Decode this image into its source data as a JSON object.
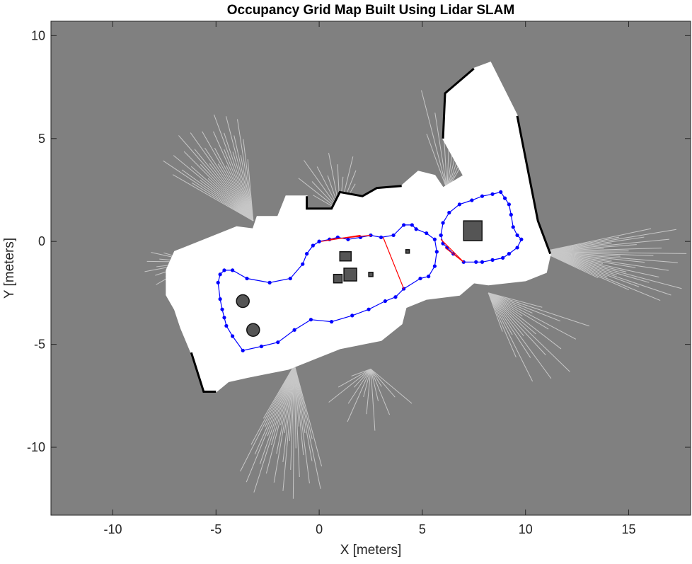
{
  "chart_data": {
    "type": "scatter",
    "title": "Occupancy Grid Map Built Using Lidar SLAM",
    "xlabel": "X [meters]",
    "ylabel": "Y [meters]",
    "xlim": [
      -13,
      18
    ],
    "ylim": [
      -13.3,
      10.7
    ],
    "xticks": [
      -10,
      -5,
      0,
      5,
      10,
      15
    ],
    "yticks": [
      10,
      5,
      0,
      -5,
      -10
    ],
    "grid": false,
    "legend": "none",
    "colors": {
      "background": "#808080",
      "free_space": "#ffffff",
      "occupied": "#000000",
      "trajectory": "#0000ff",
      "loop_closure": "#ff0000"
    },
    "trajectory": {
      "x": [
        0.0,
        0.5,
        0.9,
        1.4,
        2.0,
        2.5,
        3.0,
        3.6,
        4.1,
        4.5,
        4.7,
        5.2,
        5.6,
        5.7,
        5.6,
        5.3,
        4.9,
        4.1,
        3.7,
        3.2,
        2.4,
        1.6,
        0.6,
        -0.4,
        -1.2,
        -2.0,
        -2.8,
        -3.7,
        -4.2,
        -4.5,
        -4.6,
        -4.7,
        -4.8,
        -4.9,
        -4.8,
        -4.6,
        -4.2,
        -3.5,
        -2.4,
        -1.4,
        -0.8,
        -0.6,
        -0.3,
        0.0
      ],
      "y": [
        0.0,
        0.1,
        0.2,
        0.1,
        0.2,
        0.3,
        0.2,
        0.3,
        0.8,
        0.8,
        0.6,
        0.4,
        0.1,
        -0.5,
        -1.2,
        -1.7,
        -1.8,
        -2.3,
        -2.7,
        -2.9,
        -3.3,
        -3.6,
        -3.9,
        -3.8,
        -4.3,
        -4.9,
        -5.1,
        -5.3,
        -4.6,
        -4.1,
        -3.7,
        -3.3,
        -2.8,
        -2.0,
        -1.6,
        -1.4,
        -1.4,
        -1.8,
        -2.0,
        -1.8,
        -1.1,
        -0.6,
        -0.2,
        0.0
      ]
    },
    "trajectory_loop2": {
      "x": [
        5.9,
        6.0,
        6.3,
        6.8,
        7.4,
        7.9,
        8.4,
        8.8,
        9.0,
        9.2,
        9.3,
        9.4,
        9.6,
        9.8,
        9.6,
        9.2,
        8.9,
        8.4,
        7.9,
        7.6,
        7.0,
        6.5,
        6.2,
        6.0,
        5.9
      ],
      "y": [
        0.3,
        0.9,
        1.4,
        1.8,
        2.0,
        2.2,
        2.3,
        2.4,
        2.1,
        1.8,
        1.3,
        0.7,
        0.3,
        0.1,
        -0.3,
        -0.6,
        -0.8,
        -0.9,
        -1.0,
        -1.0,
        -1.0,
        -0.6,
        -0.3,
        -0.1,
        0.3
      ]
    },
    "loop_closures": [
      {
        "x": [
          3.1,
          4.1
        ],
        "y": [
          0.2,
          -2.3
        ]
      },
      {
        "x": [
          5.9,
          7.0
        ],
        "y": [
          0.1,
          -1.0
        ]
      },
      {
        "x": [
          6.1,
          7.0
        ],
        "y": [
          -0.3,
          -1.0
        ]
      },
      {
        "x": [
          0.1,
          2.0
        ],
        "y": [
          0.0,
          0.3
        ]
      },
      {
        "x": [
          0.5,
          2.5
        ],
        "y": [
          0.1,
          0.3
        ]
      }
    ]
  }
}
